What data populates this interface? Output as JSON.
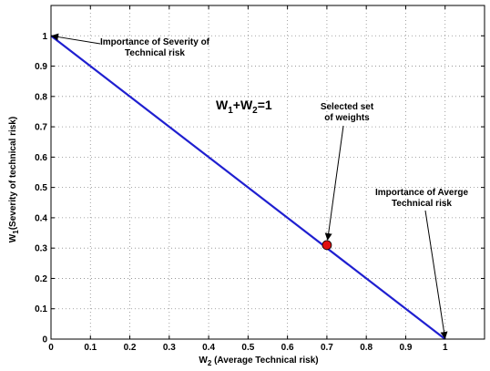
{
  "chart_data": {
    "type": "line",
    "x_ticks": [
      "0",
      "0.1",
      "0.2",
      "0.3",
      "0.4",
      "0.5",
      "0.6",
      "0.7",
      "0.8",
      "0.9",
      "1"
    ],
    "y_ticks": [
      "0",
      "0.1",
      "0.2",
      "0.3",
      "0.4",
      "0.5",
      "0.6",
      "0.7",
      "0.8",
      "0.9",
      "1"
    ],
    "xlim": [
      0,
      1.1
    ],
    "ylim": [
      0,
      1.1
    ],
    "grid": true,
    "xlabel": {
      "base": "W",
      "sub": "2",
      "rest": " (Average Technical risk)"
    },
    "ylabel": {
      "base": "W",
      "sub": "1",
      "rest": "(Severity of technical risk)"
    },
    "series": [
      {
        "type": "line",
        "color": "#1f1fd0",
        "x": [
          0,
          1
        ],
        "y": [
          1,
          0
        ]
      }
    ],
    "point": {
      "x": 0.7,
      "y": 0.31,
      "color": "#e01010"
    },
    "equation": {
      "w1": "W",
      "s1": "1",
      "plus": "+W",
      "s2": "2",
      "tail": "=1"
    },
    "annotations": [
      {
        "lines": [
          "Importance of Severity of",
          "Technical risk"
        ],
        "target": [
          0,
          1
        ]
      },
      {
        "lines": [
          "Selected set",
          "of weights"
        ],
        "target": [
          0.7,
          0.31
        ]
      },
      {
        "lines": [
          "Importance of Averge",
          "Technical risk"
        ],
        "target": [
          1,
          0
        ]
      }
    ]
  }
}
